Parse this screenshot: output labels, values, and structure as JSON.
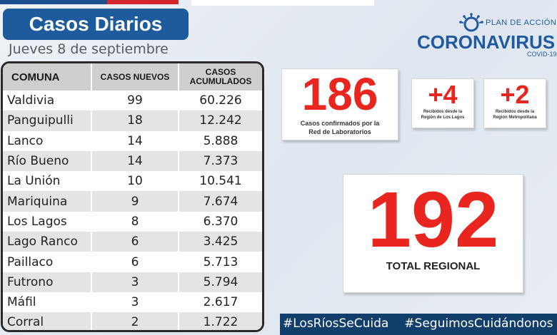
{
  "title": "Casos Diarios",
  "date": "Jueves 8 de septiembre",
  "table": {
    "headers": {
      "comuna": "COMUNA",
      "nuevos": "CASOS NUEVOS",
      "acumulados_line1": "CASOS",
      "acumulados_line2": "ACUMULADOS"
    },
    "rows": [
      {
        "comuna": "Valdivia",
        "nuevos": "99",
        "acumulados": "60.226"
      },
      {
        "comuna": "Panguipulli",
        "nuevos": "18",
        "acumulados": "12.242"
      },
      {
        "comuna": "Lanco",
        "nuevos": "14",
        "acumulados": "5.888"
      },
      {
        "comuna": "Río Bueno",
        "nuevos": "14",
        "acumulados": "7.373"
      },
      {
        "comuna": "La Unión",
        "nuevos": "10",
        "acumulados": "10.541"
      },
      {
        "comuna": "Mariquina",
        "nuevos": "9",
        "acumulados": "7.674"
      },
      {
        "comuna": "Los Lagos",
        "nuevos": "8",
        "acumulados": "6.370"
      },
      {
        "comuna": "Lago Ranco",
        "nuevos": "6",
        "acumulados": "3.425"
      },
      {
        "comuna": "Paillaco",
        "nuevos": "6",
        "acumulados": "5.713"
      },
      {
        "comuna": "Futrono",
        "nuevos": "3",
        "acumulados": "5.794"
      },
      {
        "comuna": "Máfil",
        "nuevos": "3",
        "acumulados": "2.617"
      },
      {
        "comuna": "Corral",
        "nuevos": "2",
        "acumulados": "1.722"
      }
    ]
  },
  "logo": {
    "plan": "PLAN DE ACCIÓN",
    "name": "CORONAVIRUS",
    "sub": "COVID-19"
  },
  "lab": {
    "value": "186",
    "label_line1": "Casos confirmados por la",
    "label_line2": "Red de Laboratorios"
  },
  "los_lagos": {
    "value": "+4",
    "label_line1": "Recibidos desde la",
    "label_line2": "Región de Los Lagos"
  },
  "metropolitana": {
    "value": "+2",
    "label_line1": "Recibidos desde la",
    "label_line2": "Región Metropolitana"
  },
  "total": {
    "value": "192",
    "label": "TOTAL REGIONAL"
  },
  "hashtags": [
    "#LosRíosSeCuida",
    "#SeguimosCuidándonos"
  ],
  "colors": {
    "title_bg": "#1e5b9c",
    "accent_red": "#e8251f",
    "hashtag_bg": "#123e6b",
    "logo_blue": "#1f5aa0"
  }
}
